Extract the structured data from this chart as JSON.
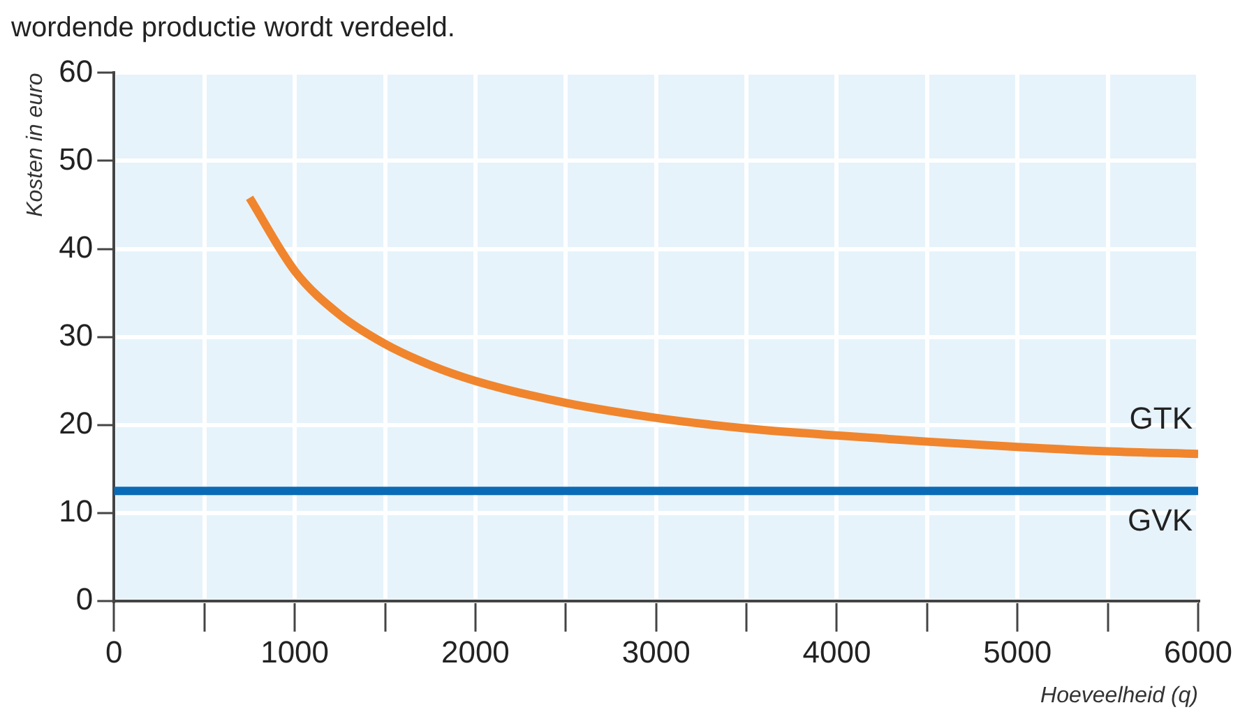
{
  "chart_data": {
    "type": "line",
    "annotations": [
      "wordende productie wordt verdeeld."
    ],
    "xlabel": "Hoeveelheid (q)",
    "ylabel": "Kosten in euro",
    "series": [
      {
        "name": "GTK",
        "color": "#f0852d",
        "x": [
          750,
          1000,
          1250,
          1500,
          1750,
          2000,
          2500,
          3000,
          3500,
          4000,
          4500,
          5000,
          5500,
          6000
        ],
        "values": [
          45.8,
          37.5,
          32.5,
          29.2,
          26.8,
          25,
          22.5,
          20.8,
          19.6,
          18.8,
          18.1,
          17.5,
          17.0,
          16.7
        ]
      },
      {
        "name": "GVK",
        "color": "#0a6ab6",
        "x": [
          0,
          6000
        ],
        "values": [
          12.5,
          12.5
        ]
      }
    ],
    "xlim": [
      0,
      6000
    ],
    "xticks": [
      0,
      {
        "value": 500,
        "label": null
      },
      1000,
      {
        "value": 1500,
        "label": null
      },
      2000,
      {
        "value": 2500,
        "label": null
      },
      3000,
      {
        "value": 3500,
        "label": null
      },
      4000,
      {
        "value": 4500,
        "label": null
      },
      5000,
      {
        "value": 5500,
        "label": null
      },
      6000
    ],
    "ylim": [
      0,
      60
    ],
    "yticks": [
      0,
      10,
      20,
      30,
      40,
      50,
      60
    ],
    "grid": true,
    "legend": false,
    "marker": "none",
    "line_style": "solid"
  }
}
